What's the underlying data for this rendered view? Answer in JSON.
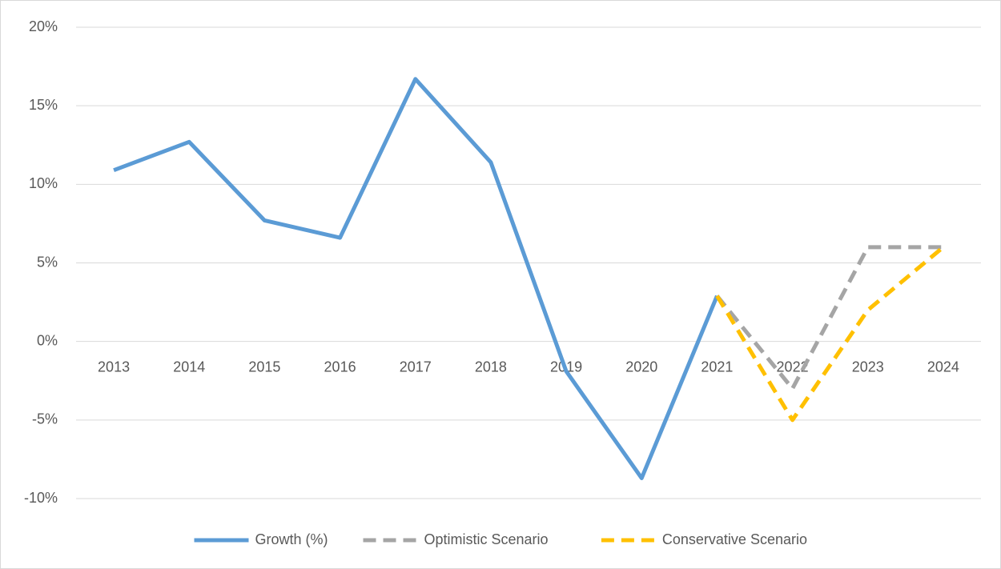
{
  "chart_data": {
    "type": "line",
    "categories": [
      "2013",
      "2014",
      "2015",
      "2016",
      "2017",
      "2018",
      "2019",
      "2020",
      "2021",
      "2022",
      "2023",
      "2024"
    ],
    "series": [
      {
        "name": "Growth (%)",
        "color": "#5b9bd5",
        "dashed": false,
        "values": [
          10.9,
          12.7,
          7.7,
          6.6,
          16.7,
          11.4,
          -1.9,
          -8.7,
          2.9,
          null,
          null,
          null
        ]
      },
      {
        "name": "Optimistic Scenario",
        "color": "#a5a5a5",
        "dashed": true,
        "values": [
          null,
          null,
          null,
          null,
          null,
          null,
          null,
          null,
          2.9,
          -3,
          6,
          6
        ]
      },
      {
        "name": "Conservative Scenario",
        "color": "#ffc000",
        "dashed": true,
        "values": [
          null,
          null,
          null,
          null,
          null,
          null,
          null,
          null,
          2.9,
          -5,
          2,
          6
        ]
      }
    ],
    "ylim": [
      -15,
      20
    ],
    "yticks": [
      {
        "value": -10,
        "label": "-10%"
      },
      {
        "value": -5,
        "label": "-5%"
      },
      {
        "value": 0,
        "label": "0%"
      },
      {
        "value": 5,
        "label": "5%"
      },
      {
        "value": 10,
        "label": "10%"
      },
      {
        "value": 15,
        "label": "15%"
      },
      {
        "value": 20,
        "label": "20%"
      }
    ],
    "grid": true,
    "legend": "bottom"
  }
}
